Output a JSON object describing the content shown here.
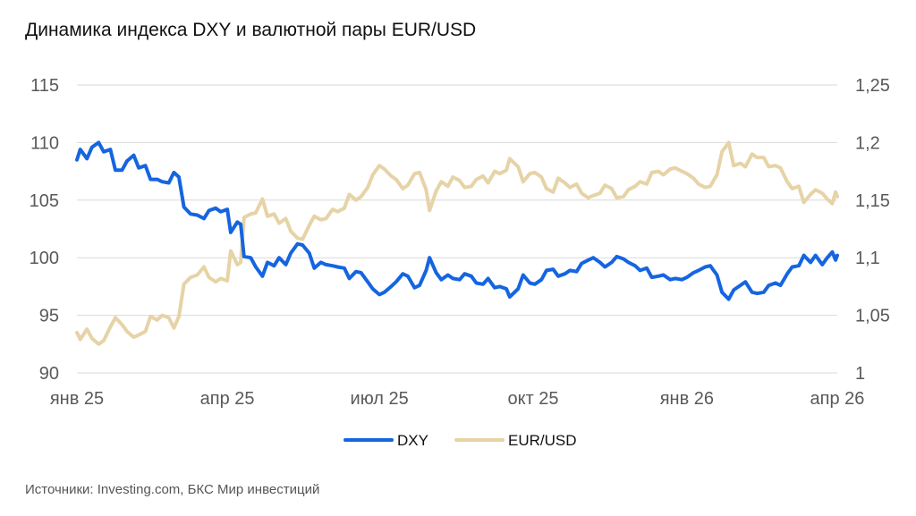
{
  "title": "Динамика индекса DXY и валютной пары EUR/USD",
  "source": "Источники: Investing.com, БКС Мир инвестиций",
  "colors": {
    "dxy": "#1565e0",
    "eurusd": "#e6d3a6",
    "grid": "#d9d9d9",
    "tick": "#595959"
  },
  "chart_data": {
    "type": "line",
    "x_tick_labels": [
      "янв 25",
      "апр 25",
      "июл 25",
      "окт 25",
      "янв 26",
      "апр 26"
    ],
    "x_tick_dates": [
      "2025-01-01",
      "2025-04-01",
      "2025-07-01",
      "2025-10-01",
      "2026-01-01",
      "2026-04-01"
    ],
    "x_range": [
      "2025-01-01",
      "2026-04-01"
    ],
    "y_left": {
      "ticks": [
        "90",
        "95",
        "100",
        "105",
        "110",
        "115"
      ],
      "ylim": [
        90,
        115
      ]
    },
    "y_right": {
      "ticks": [
        "1",
        "1,05",
        "1,1",
        "1,15",
        "1,2",
        "1,25"
      ],
      "ylim": [
        1.0,
        1.25
      ]
    },
    "grid": true,
    "legend_position": "bottom-center",
    "series": [
      {
        "name": "DXY",
        "axis": "left",
        "color": "#1565e0",
        "points": [
          [
            "2025-01-01",
            108.5
          ],
          [
            "2025-01-03",
            109.4
          ],
          [
            "2025-01-07",
            108.6
          ],
          [
            "2025-01-10",
            109.6
          ],
          [
            "2025-01-14",
            110.0
          ],
          [
            "2025-01-17",
            109.2
          ],
          [
            "2025-01-21",
            109.4
          ],
          [
            "2025-01-24",
            107.6
          ],
          [
            "2025-01-28",
            107.6
          ],
          [
            "2025-01-31",
            108.4
          ],
          [
            "2025-02-04",
            108.9
          ],
          [
            "2025-02-07",
            107.8
          ],
          [
            "2025-02-11",
            108.0
          ],
          [
            "2025-02-14",
            106.8
          ],
          [
            "2025-02-18",
            106.8
          ],
          [
            "2025-02-21",
            106.6
          ],
          [
            "2025-02-25",
            106.5
          ],
          [
            "2025-02-28",
            107.4
          ],
          [
            "2025-03-03",
            107.0
          ],
          [
            "2025-03-06",
            104.4
          ],
          [
            "2025-03-10",
            103.8
          ],
          [
            "2025-03-14",
            103.7
          ],
          [
            "2025-03-18",
            103.4
          ],
          [
            "2025-03-21",
            104.1
          ],
          [
            "2025-03-25",
            104.3
          ],
          [
            "2025-03-28",
            104.0
          ],
          [
            "2025-04-01",
            104.2
          ],
          [
            "2025-04-03",
            102.2
          ],
          [
            "2025-04-07",
            103.1
          ],
          [
            "2025-04-09",
            102.9
          ],
          [
            "2025-04-11",
            100.1
          ],
          [
            "2025-04-15",
            100.0
          ],
          [
            "2025-04-18",
            99.2
          ],
          [
            "2025-04-22",
            98.4
          ],
          [
            "2025-04-25",
            99.6
          ],
          [
            "2025-04-29",
            99.3
          ],
          [
            "2025-05-02",
            100.0
          ],
          [
            "2025-05-06",
            99.4
          ],
          [
            "2025-05-09",
            100.4
          ],
          [
            "2025-05-13",
            101.2
          ],
          [
            "2025-05-16",
            101.1
          ],
          [
            "2025-05-20",
            100.4
          ],
          [
            "2025-05-23",
            99.1
          ],
          [
            "2025-05-27",
            99.6
          ],
          [
            "2025-05-30",
            99.4
          ],
          [
            "2025-06-03",
            99.3
          ],
          [
            "2025-06-06",
            99.2
          ],
          [
            "2025-06-10",
            99.1
          ],
          [
            "2025-06-13",
            98.2
          ],
          [
            "2025-06-17",
            98.8
          ],
          [
            "2025-06-20",
            98.7
          ],
          [
            "2025-06-24",
            97.9
          ],
          [
            "2025-06-27",
            97.3
          ],
          [
            "2025-07-01",
            96.8
          ],
          [
            "2025-07-04",
            97.0
          ],
          [
            "2025-07-08",
            97.5
          ],
          [
            "2025-07-11",
            97.9
          ],
          [
            "2025-07-15",
            98.6
          ],
          [
            "2025-07-18",
            98.4
          ],
          [
            "2025-07-22",
            97.4
          ],
          [
            "2025-07-25",
            97.6
          ],
          [
            "2025-07-29",
            98.9
          ],
          [
            "2025-07-31",
            100.0
          ],
          [
            "2025-08-04",
            98.7
          ],
          [
            "2025-08-07",
            98.1
          ],
          [
            "2025-08-11",
            98.5
          ],
          [
            "2025-08-14",
            98.2
          ],
          [
            "2025-08-18",
            98.1
          ],
          [
            "2025-08-21",
            98.6
          ],
          [
            "2025-08-25",
            98.4
          ],
          [
            "2025-08-28",
            97.8
          ],
          [
            "2025-09-01",
            97.7
          ],
          [
            "2025-09-04",
            98.2
          ],
          [
            "2025-09-08",
            97.4
          ],
          [
            "2025-09-11",
            97.5
          ],
          [
            "2025-09-15",
            97.3
          ],
          [
            "2025-09-17",
            96.6
          ],
          [
            "2025-09-22",
            97.3
          ],
          [
            "2025-09-25",
            98.5
          ],
          [
            "2025-09-29",
            97.8
          ],
          [
            "2025-10-02",
            97.7
          ],
          [
            "2025-10-06",
            98.1
          ],
          [
            "2025-10-09",
            98.9
          ],
          [
            "2025-10-13",
            99.0
          ],
          [
            "2025-10-16",
            98.4
          ],
          [
            "2025-10-20",
            98.6
          ],
          [
            "2025-10-23",
            98.9
          ],
          [
            "2025-10-27",
            98.8
          ],
          [
            "2025-10-30",
            99.5
          ],
          [
            "2025-11-03",
            99.8
          ],
          [
            "2025-11-06",
            100.0
          ],
          [
            "2025-11-10",
            99.6
          ],
          [
            "2025-11-13",
            99.2
          ],
          [
            "2025-11-17",
            99.6
          ],
          [
            "2025-11-20",
            100.1
          ],
          [
            "2025-11-24",
            99.9
          ],
          [
            "2025-11-27",
            99.6
          ],
          [
            "2025-12-01",
            99.3
          ],
          [
            "2025-12-04",
            98.9
          ],
          [
            "2025-12-08",
            99.1
          ],
          [
            "2025-12-11",
            98.3
          ],
          [
            "2025-12-15",
            98.4
          ],
          [
            "2025-12-18",
            98.5
          ],
          [
            "2025-12-22",
            98.1
          ],
          [
            "2025-12-25",
            98.2
          ],
          [
            "2025-12-29",
            98.1
          ],
          [
            "2026-01-01",
            98.3
          ],
          [
            "2026-01-05",
            98.7
          ],
          [
            "2026-01-08",
            98.9
          ],
          [
            "2026-01-12",
            99.2
          ],
          [
            "2026-01-15",
            99.3
          ],
          [
            "2026-01-19",
            98.5
          ],
          [
            "2026-01-22",
            97.0
          ],
          [
            "2026-01-26",
            96.4
          ],
          [
            "2026-01-29",
            97.2
          ],
          [
            "2026-02-02",
            97.6
          ],
          [
            "2026-02-05",
            97.9
          ],
          [
            "2026-02-09",
            97.0
          ],
          [
            "2026-02-12",
            96.9
          ],
          [
            "2026-02-16",
            97.0
          ],
          [
            "2026-02-19",
            97.6
          ],
          [
            "2026-02-23",
            97.8
          ],
          [
            "2026-02-26",
            97.6
          ],
          [
            "2026-03-02",
            98.6
          ],
          [
            "2026-03-05",
            99.2
          ],
          [
            "2026-03-09",
            99.3
          ],
          [
            "2026-03-12",
            100.2
          ],
          [
            "2026-03-16",
            99.6
          ],
          [
            "2026-03-19",
            100.2
          ],
          [
            "2026-03-23",
            99.4
          ],
          [
            "2026-03-26",
            100.0
          ],
          [
            "2026-03-29",
            100.5
          ],
          [
            "2026-03-31",
            99.8
          ],
          [
            "2026-04-01",
            100.2
          ]
        ]
      },
      {
        "name": "EUR/USD",
        "axis": "right",
        "color": "#e6d3a6",
        "points": [
          [
            "2025-01-01",
            1.035
          ],
          [
            "2025-01-03",
            1.029
          ],
          [
            "2025-01-07",
            1.038
          ],
          [
            "2025-01-10",
            1.03
          ],
          [
            "2025-01-14",
            1.025
          ],
          [
            "2025-01-17",
            1.028
          ],
          [
            "2025-01-21",
            1.04
          ],
          [
            "2025-01-24",
            1.048
          ],
          [
            "2025-01-28",
            1.042
          ],
          [
            "2025-01-31",
            1.036
          ],
          [
            "2025-02-04",
            1.031
          ],
          [
            "2025-02-07",
            1.033
          ],
          [
            "2025-02-11",
            1.036
          ],
          [
            "2025-02-14",
            1.049
          ],
          [
            "2025-02-18",
            1.046
          ],
          [
            "2025-02-21",
            1.05
          ],
          [
            "2025-02-25",
            1.048
          ],
          [
            "2025-02-28",
            1.039
          ],
          [
            "2025-03-03",
            1.049
          ],
          [
            "2025-03-06",
            1.077
          ],
          [
            "2025-03-10",
            1.083
          ],
          [
            "2025-03-14",
            1.085
          ],
          [
            "2025-03-18",
            1.092
          ],
          [
            "2025-03-21",
            1.083
          ],
          [
            "2025-03-25",
            1.079
          ],
          [
            "2025-03-28",
            1.082
          ],
          [
            "2025-04-01",
            1.08
          ],
          [
            "2025-04-03",
            1.106
          ],
          [
            "2025-04-07",
            1.094
          ],
          [
            "2025-04-09",
            1.096
          ],
          [
            "2025-04-11",
            1.135
          ],
          [
            "2025-04-15",
            1.138
          ],
          [
            "2025-04-18",
            1.139
          ],
          [
            "2025-04-22",
            1.151
          ],
          [
            "2025-04-25",
            1.136
          ],
          [
            "2025-04-29",
            1.138
          ],
          [
            "2025-05-02",
            1.13
          ],
          [
            "2025-05-06",
            1.134
          ],
          [
            "2025-05-09",
            1.123
          ],
          [
            "2025-05-13",
            1.117
          ],
          [
            "2025-05-16",
            1.116
          ],
          [
            "2025-05-20",
            1.128
          ],
          [
            "2025-05-23",
            1.136
          ],
          [
            "2025-05-27",
            1.133
          ],
          [
            "2025-05-30",
            1.134
          ],
          [
            "2025-06-03",
            1.142
          ],
          [
            "2025-06-06",
            1.14
          ],
          [
            "2025-06-10",
            1.143
          ],
          [
            "2025-06-13",
            1.155
          ],
          [
            "2025-06-17",
            1.15
          ],
          [
            "2025-06-20",
            1.153
          ],
          [
            "2025-06-24",
            1.161
          ],
          [
            "2025-06-27",
            1.172
          ],
          [
            "2025-07-01",
            1.18
          ],
          [
            "2025-07-04",
            1.177
          ],
          [
            "2025-07-08",
            1.171
          ],
          [
            "2025-07-11",
            1.168
          ],
          [
            "2025-07-15",
            1.16
          ],
          [
            "2025-07-18",
            1.163
          ],
          [
            "2025-07-22",
            1.173
          ],
          [
            "2025-07-25",
            1.174
          ],
          [
            "2025-07-29",
            1.159
          ],
          [
            "2025-07-31",
            1.141
          ],
          [
            "2025-08-04",
            1.158
          ],
          [
            "2025-08-07",
            1.166
          ],
          [
            "2025-08-11",
            1.162
          ],
          [
            "2025-08-14",
            1.17
          ],
          [
            "2025-08-18",
            1.167
          ],
          [
            "2025-08-21",
            1.161
          ],
          [
            "2025-08-25",
            1.162
          ],
          [
            "2025-08-28",
            1.168
          ],
          [
            "2025-09-01",
            1.171
          ],
          [
            "2025-09-04",
            1.165
          ],
          [
            "2025-09-08",
            1.175
          ],
          [
            "2025-09-11",
            1.173
          ],
          [
            "2025-09-15",
            1.176
          ],
          [
            "2025-09-17",
            1.186
          ],
          [
            "2025-09-22",
            1.179
          ],
          [
            "2025-09-25",
            1.166
          ],
          [
            "2025-09-29",
            1.173
          ],
          [
            "2025-10-02",
            1.174
          ],
          [
            "2025-10-06",
            1.17
          ],
          [
            "2025-10-09",
            1.16
          ],
          [
            "2025-10-13",
            1.157
          ],
          [
            "2025-10-16",
            1.169
          ],
          [
            "2025-10-20",
            1.165
          ],
          [
            "2025-10-23",
            1.161
          ],
          [
            "2025-10-27",
            1.164
          ],
          [
            "2025-10-30",
            1.156
          ],
          [
            "2025-11-03",
            1.152
          ],
          [
            "2025-11-06",
            1.154
          ],
          [
            "2025-11-10",
            1.156
          ],
          [
            "2025-11-13",
            1.163
          ],
          [
            "2025-11-17",
            1.16
          ],
          [
            "2025-11-20",
            1.152
          ],
          [
            "2025-11-24",
            1.153
          ],
          [
            "2025-11-27",
            1.159
          ],
          [
            "2025-12-01",
            1.162
          ],
          [
            "2025-12-04",
            1.166
          ],
          [
            "2025-12-08",
            1.164
          ],
          [
            "2025-12-11",
            1.174
          ],
          [
            "2025-12-15",
            1.175
          ],
          [
            "2025-12-18",
            1.172
          ],
          [
            "2025-12-22",
            1.177
          ],
          [
            "2025-12-25",
            1.178
          ],
          [
            "2025-12-29",
            1.175
          ],
          [
            "2026-01-01",
            1.173
          ],
          [
            "2026-01-05",
            1.169
          ],
          [
            "2026-01-08",
            1.164
          ],
          [
            "2026-01-12",
            1.161
          ],
          [
            "2026-01-15",
            1.162
          ],
          [
            "2026-01-19",
            1.172
          ],
          [
            "2026-01-22",
            1.192
          ],
          [
            "2026-01-26",
            1.2
          ],
          [
            "2026-01-29",
            1.18
          ],
          [
            "2026-02-02",
            1.182
          ],
          [
            "2026-02-05",
            1.179
          ],
          [
            "2026-02-09",
            1.19
          ],
          [
            "2026-02-12",
            1.187
          ],
          [
            "2026-02-16",
            1.187
          ],
          [
            "2026-02-19",
            1.179
          ],
          [
            "2026-02-23",
            1.18
          ],
          [
            "2026-02-26",
            1.178
          ],
          [
            "2026-03-02",
            1.166
          ],
          [
            "2026-03-05",
            1.16
          ],
          [
            "2026-03-09",
            1.162
          ],
          [
            "2026-03-12",
            1.148
          ],
          [
            "2026-03-16",
            1.155
          ],
          [
            "2026-03-19",
            1.159
          ],
          [
            "2026-03-23",
            1.156
          ],
          [
            "2026-03-26",
            1.151
          ],
          [
            "2026-03-29",
            1.147
          ],
          [
            "2026-03-31",
            1.157
          ],
          [
            "2026-04-01",
            1.153
          ]
        ]
      }
    ]
  }
}
